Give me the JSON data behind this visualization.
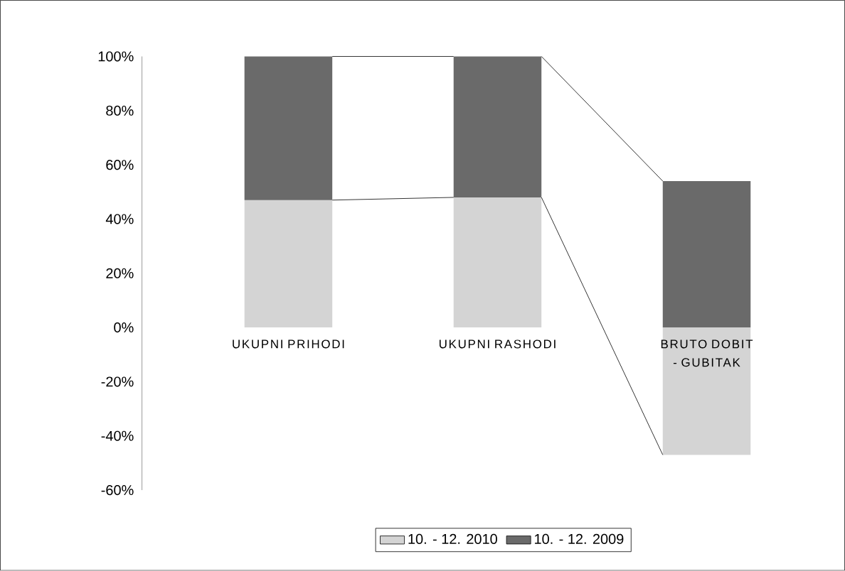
{
  "chart_data": {
    "type": "bar",
    "stacked": true,
    "categories": [
      "UKUPNI PRIHODI",
      "UKUPNI RASHODI",
      "BRUTO DOBIT - GUBITAK"
    ],
    "series": [
      {
        "name": "10. - 12. 2010",
        "color": "#d4d4d4",
        "values": [
          47,
          48,
          -47
        ]
      },
      {
        "name": "10. - 12. 2009",
        "color": "#6a6a6a",
        "values": [
          53,
          52,
          54
        ]
      }
    ],
    "ylim": [
      -60,
      100
    ],
    "yticks": [
      {
        "value": -60,
        "label": "-60%"
      },
      {
        "value": -40,
        "label": "-40%"
      },
      {
        "value": -20,
        "label": "-20%"
      },
      {
        "value": 0,
        "label": "0%"
      },
      {
        "value": 20,
        "label": "20%"
      },
      {
        "value": 40,
        "label": "40%"
      },
      {
        "value": 60,
        "label": "60%"
      },
      {
        "value": 80,
        "label": "80%"
      },
      {
        "value": 100,
        "label": "100%"
      }
    ],
    "grid": false,
    "legend": "bottom"
  }
}
